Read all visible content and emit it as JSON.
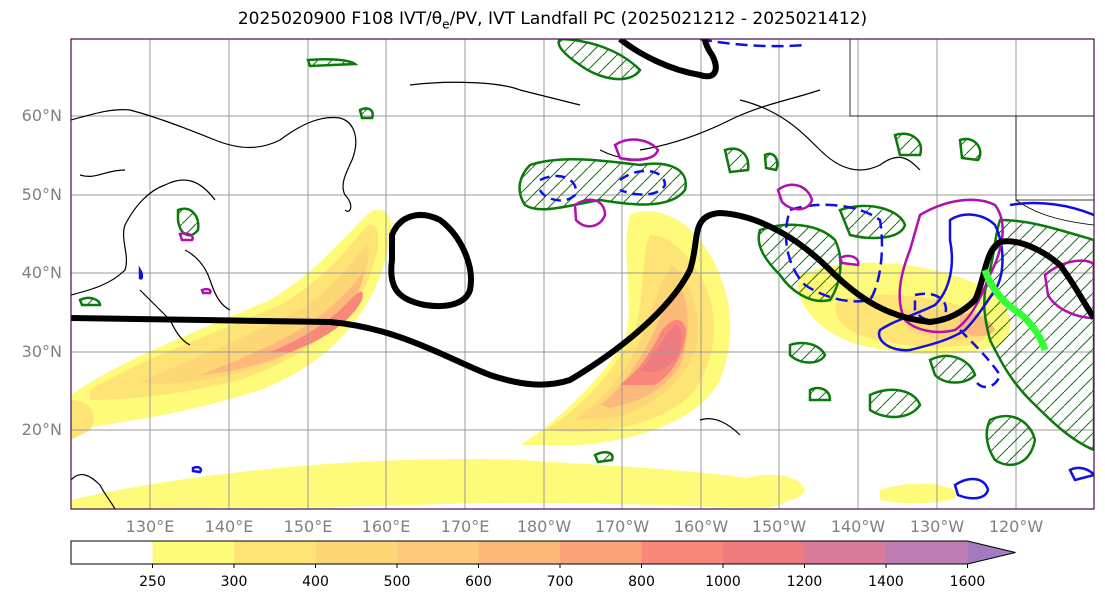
{
  "title": {
    "prefix": "2025020900 F108 IVT/",
    "theta": "θ",
    "theta_sub": "e",
    "suffix": "/PV, IVT Landfall PC (2025021212 - 2025021412)"
  },
  "axes": {
    "lat_labels": [
      "60°N",
      "50°N",
      "40°N",
      "30°N",
      "20°N"
    ],
    "lon_labels": [
      "130°E",
      "140°E",
      "150°E",
      "160°E",
      "170°E",
      "180°W",
      "170°W",
      "160°W",
      "150°W",
      "140°W",
      "130°W",
      "120°W"
    ]
  },
  "colorbar": {
    "tick_labels": [
      "250",
      "300",
      "400",
      "500",
      "600",
      "700",
      "800",
      "1000",
      "1200",
      "1400",
      "1600"
    ],
    "colors": [
      "#fffb7a",
      "#fee474",
      "#fdd776",
      "#fec97a",
      "#fdb97a",
      "#fca479",
      "#f9877a",
      "#ee7b7f",
      "#d87a99",
      "#bc7db3",
      "#a57bbf"
    ],
    "extend": "max"
  },
  "colors": {
    "pv_contour": "#000000",
    "coastline": "#000000",
    "green_contour": "#0a7a0a",
    "blue_contour": "#1010e0",
    "magenta_contour": "#b010b0",
    "landfall_line": "#33ff33",
    "gridline": "#999999",
    "frame": "#4b0a4b"
  }
}
